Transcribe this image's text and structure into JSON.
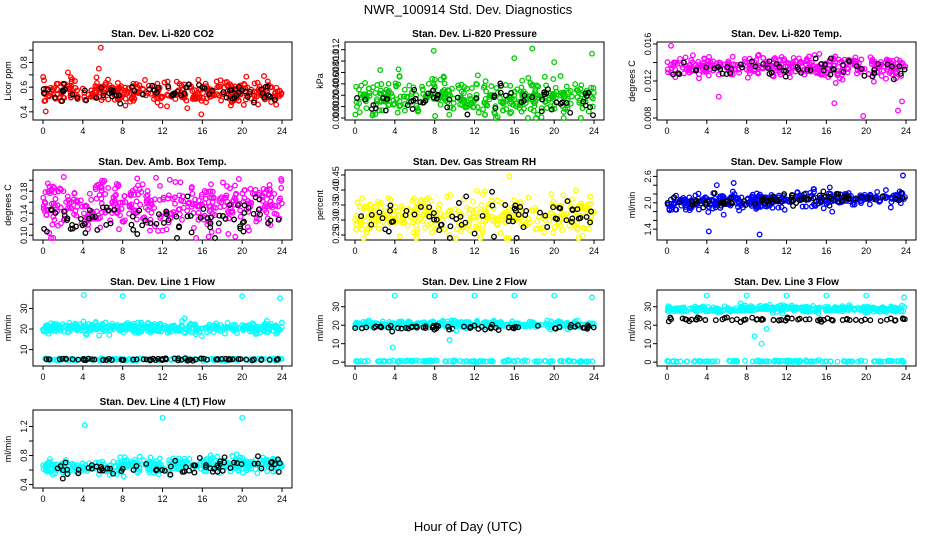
{
  "figure": {
    "title": "NWR_100914  Std. Dev. Diagnostics",
    "xlabel": "Hour of Day (UTC)"
  },
  "chart_data": [
    {
      "type": "scatter",
      "title": "Stan. Dev. Li-820 CO2",
      "ylabel": "Licor ppm",
      "xlim": [
        0,
        24
      ],
      "ylim": [
        0.35,
        0.95
      ],
      "yticks": [
        0.4,
        0.5,
        0.6,
        0.7,
        0.8,
        0.9
      ],
      "ytick_labels": [
        "0.4",
        "",
        "0.6",
        "",
        "0.8",
        ""
      ],
      "series": [
        {
          "name": "primary",
          "color": "#ff0000",
          "center": 0.56,
          "spread": 0.045,
          "count": 340
        },
        {
          "name": "secondary",
          "color": "#000000",
          "center": 0.55,
          "spread": 0.035,
          "count": 70
        }
      ],
      "outliers": [
        {
          "x": 2.5,
          "y": 0.72
        },
        {
          "x": 2.8,
          "y": 0.68
        },
        {
          "x": 3.2,
          "y": 0.65
        },
        {
          "x": 5.8,
          "y": 0.92
        },
        {
          "x": 5.6,
          "y": 0.75
        },
        {
          "x": 15.6,
          "y": 0.66
        },
        {
          "x": 15.9,
          "y": 0.38
        }
      ]
    },
    {
      "type": "scatter",
      "title": "Stan. Dev. Li-820 Pressure",
      "ylabel": "kPa",
      "xlim": [
        0,
        24
      ],
      "ylim": [
        0,
        0.013
      ],
      "yticks": [
        0,
        0.002,
        0.004,
        0.006,
        0.008,
        0.01,
        0.012
      ],
      "ytick_labels": [
        "0.000",
        "0.002",
        "0.004",
        "0.006",
        "0.008",
        "0.010",
        "0.012"
      ],
      "series": [
        {
          "name": "primary",
          "color": "#00cc00",
          "center": 0.0035,
          "spread": 0.0016,
          "count": 360
        },
        {
          "name": "secondary",
          "color": "#000000",
          "center": 0.003,
          "spread": 0.0012,
          "count": 60
        }
      ],
      "outliers": [
        {
          "x": 7.9,
          "y": 0.0118
        },
        {
          "x": 17.8,
          "y": 0.0122
        },
        {
          "x": 23.8,
          "y": 0.0113
        },
        {
          "x": 16,
          "y": 0.0105
        },
        {
          "x": 20,
          "y": 0.0098
        }
      ]
    },
    {
      "type": "scatter",
      "title": "Stan. Dev. Li-820 Temp.",
      "ylabel": "degrees C",
      "xlim": [
        0,
        24
      ],
      "ylim": [
        0.008,
        0.016
      ],
      "yticks": [
        0.008,
        0.01,
        0.012,
        0.014,
        0.016
      ],
      "ytick_labels": [
        "0.008",
        "",
        "0.012",
        "",
        "0.016"
      ],
      "series": [
        {
          "name": "primary",
          "color": "#ff00ff",
          "center": 0.0135,
          "spread": 0.0006,
          "count": 340
        },
        {
          "name": "secondary",
          "color": "#000000",
          "center": 0.0133,
          "spread": 0.0005,
          "count": 60
        }
      ],
      "outliers": [
        {
          "x": 0.4,
          "y": 0.0158
        },
        {
          "x": 5.2,
          "y": 0.0103
        },
        {
          "x": 16.8,
          "y": 0.0096
        },
        {
          "x": 19.7,
          "y": 0.0082
        },
        {
          "x": 23.2,
          "y": 0.0088
        },
        {
          "x": 23.6,
          "y": 0.0098
        }
      ]
    },
    {
      "type": "scatter",
      "title": "Stan. Dev. Amb. Box Temp.",
      "ylabel": "degrees C",
      "xlim": [
        0,
        24
      ],
      "ylim": [
        0.095,
        0.215
      ],
      "yticks": [
        0.1,
        0.12,
        0.14,
        0.16,
        0.18,
        0.2
      ],
      "ytick_labels": [
        "0.10",
        "",
        "0.14",
        "",
        "0.18",
        ""
      ],
      "series": [
        {
          "name": "primary",
          "color": "#ff00ff",
          "center": 0.155,
          "spread": 0.022,
          "count": 380
        },
        {
          "name": "secondary",
          "color": "#000000",
          "center": 0.13,
          "spread": 0.015,
          "count": 80
        }
      ],
      "outliers": []
    },
    {
      "type": "scatter",
      "title": "Stan. Dev. Gas Stream RH",
      "ylabel": "percent",
      "xlim": [
        0,
        24
      ],
      "ylim": [
        0.24,
        0.46
      ],
      "yticks": [
        0.25,
        0.3,
        0.35,
        0.4,
        0.45
      ],
      "ytick_labels": [
        "0.25",
        "0.30",
        "0.35",
        "0.40",
        "0.45"
      ],
      "series": [
        {
          "name": "primary",
          "color": "#ffff00",
          "center": 0.31,
          "spread": 0.035,
          "count": 340
        },
        {
          "name": "secondary",
          "color": "#000000",
          "center": 0.3,
          "spread": 0.03,
          "count": 70
        }
      ],
      "outliers": [
        {
          "x": 15.5,
          "y": 0.445
        },
        {
          "x": 4.5,
          "y": 0.245
        },
        {
          "x": 15.2,
          "y": 0.24
        }
      ]
    },
    {
      "type": "scatter",
      "title": "Stan. Dev. Sample Flow",
      "ylabel": "ml/min",
      "xlim": [
        0,
        24
      ],
      "ylim": [
        1.2,
        2.7
      ],
      "yticks": [
        1.4,
        1.6,
        1.8,
        2.0,
        2.2,
        2.4,
        2.6
      ],
      "ytick_labels": [
        "1.4",
        "",
        "",
        "2.0",
        "",
        "",
        "2.6"
      ],
      "series": [
        {
          "name": "primary",
          "color": "#0000ff",
          "center": 2.0,
          "spread": 0.09,
          "count": 360,
          "trend": 0.14
        },
        {
          "name": "secondary",
          "color": "#000000",
          "center": 2.0,
          "spread": 0.07,
          "count": 80,
          "trend": 0.14
        }
      ],
      "outliers": [
        {
          "x": 4.2,
          "y": 1.35
        },
        {
          "x": 9.3,
          "y": 1.28
        },
        {
          "x": 23.7,
          "y": 2.62
        },
        {
          "x": 6.7,
          "y": 2.45
        },
        {
          "x": 5,
          "y": 2.4
        }
      ]
    },
    {
      "type": "scatter",
      "title": "Stan. Dev. Line 1 Flow",
      "ylabel": "ml/min",
      "xlim": [
        0,
        24
      ],
      "ylim": [
        3,
        38
      ],
      "yticks": [
        10,
        20,
        30
      ],
      "ytick_labels": [
        "10",
        "20",
        "30"
      ],
      "series": [
        {
          "name": "primary",
          "color": "#00ffff",
          "center": 20.5,
          "spread": 1.3,
          "count": 380
        },
        {
          "name": "low",
          "color": "#00ffff",
          "center": 5.2,
          "spread": 0.3,
          "count": 120
        },
        {
          "name": "secondary",
          "color": "#000000",
          "center": 5.2,
          "spread": 0.25,
          "count": 70
        }
      ],
      "outliers": [
        {
          "x": 4.1,
          "y": 36.5
        },
        {
          "x": 8,
          "y": 36
        },
        {
          "x": 12,
          "y": 36
        },
        {
          "x": 20,
          "y": 36
        },
        {
          "x": 23.8,
          "y": 35
        }
      ]
    },
    {
      "type": "scatter",
      "title": "Stan. Dev. Line 2 Flow",
      "ylabel": "ml/min",
      "xlim": [
        0,
        24
      ],
      "ylim": [
        -1,
        38
      ],
      "yticks": [
        0,
        10,
        20,
        30
      ],
      "ytick_labels": [
        "0",
        "10",
        "20",
        "30"
      ],
      "series": [
        {
          "name": "primary",
          "color": "#00ffff",
          "center": 20.5,
          "spread": 0.9,
          "count": 330
        },
        {
          "name": "low",
          "color": "#00ffff",
          "center": 0.5,
          "spread": 0.2,
          "count": 120
        },
        {
          "name": "secondary",
          "color": "#000000",
          "center": 18.8,
          "spread": 0.7,
          "count": 65
        }
      ],
      "outliers": [
        {
          "x": 4,
          "y": 36
        },
        {
          "x": 8,
          "y": 36
        },
        {
          "x": 12,
          "y": 36
        },
        {
          "x": 16,
          "y": 36
        },
        {
          "x": 20,
          "y": 36
        },
        {
          "x": 23.8,
          "y": 35
        },
        {
          "x": 3.8,
          "y": 8
        },
        {
          "x": 9.5,
          "y": 12
        },
        {
          "x": 10.2,
          "y": 17
        }
      ]
    },
    {
      "type": "scatter",
      "title": "Stan. Dev. Line 3 Flow",
      "ylabel": "ml/min",
      "xlim": [
        0,
        24
      ],
      "ylim": [
        -1,
        38
      ],
      "yticks": [
        0,
        10,
        20,
        30
      ],
      "ytick_labels": [
        "0",
        "10",
        "20",
        "30"
      ],
      "series": [
        {
          "name": "primary",
          "color": "#00ffff",
          "center": 28.8,
          "spread": 0.9,
          "count": 330
        },
        {
          "name": "low",
          "color": "#00ffff",
          "center": 0.5,
          "spread": 0.2,
          "count": 120
        },
        {
          "name": "secondary",
          "color": "#000000",
          "center": 23,
          "spread": 0.6,
          "count": 65
        }
      ],
      "outliers": [
        {
          "x": 4,
          "y": 36
        },
        {
          "x": 8,
          "y": 36
        },
        {
          "x": 12,
          "y": 36
        },
        {
          "x": 16,
          "y": 36
        },
        {
          "x": 20,
          "y": 36
        },
        {
          "x": 23.8,
          "y": 35
        },
        {
          "x": 8.8,
          "y": 14
        },
        {
          "x": 9.5,
          "y": 10
        },
        {
          "x": 10,
          "y": 18
        }
      ]
    },
    {
      "type": "scatter",
      "title": "Stan. Dev. Line 4 (LT) Flow",
      "ylabel": "ml/min",
      "xlim": [
        0,
        24
      ],
      "ylim": [
        0.38,
        1.4
      ],
      "yticks": [
        0.4,
        0.6,
        0.8,
        1.0,
        1.2
      ],
      "ytick_labels": [
        "0.4",
        "",
        "0.8",
        "",
        "1.2"
      ],
      "series": [
        {
          "name": "primary",
          "color": "#00ffff",
          "center": 0.63,
          "spread": 0.05,
          "count": 360,
          "trend": 0.06
        },
        {
          "name": "secondary",
          "color": "#000000",
          "center": 0.6,
          "spread": 0.05,
          "count": 70,
          "trend": 0.06
        }
      ],
      "outliers": [
        {
          "x": 4.2,
          "y": 1.22
        },
        {
          "x": 12,
          "y": 1.32
        },
        {
          "x": 20,
          "y": 1.32
        }
      ]
    }
  ],
  "xticks": [
    0,
    4,
    8,
    12,
    16,
    20,
    24
  ]
}
